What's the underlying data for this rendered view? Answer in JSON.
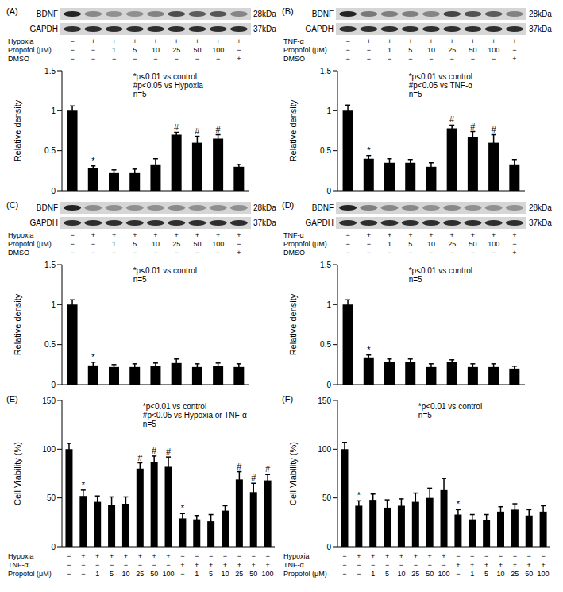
{
  "chart_data": [
    {
      "type": "bar",
      "panel": "(A)",
      "color": "#000000",
      "tick_labels": "y",
      "y_label": "Relative density",
      "blot": [
        {
          "name": "BDNF",
          "mw": "28kDa"
        },
        {
          "name": "GAPDH",
          "mw": "37kDa"
        }
      ],
      "conditions": [
        {
          "name": "Hypoxia",
          "marks": [
            "−",
            "+",
            "+",
            "+",
            "+",
            "+",
            "+",
            "+",
            "+"
          ]
        },
        {
          "name": "Propofol (μM)",
          "marks": [
            "−",
            "−",
            "1",
            "5",
            "10",
            "25",
            "50",
            "100",
            "−"
          ]
        },
        {
          "name": "DMSO",
          "marks": [
            "−",
            "−",
            "−",
            "−",
            "−",
            "−",
            "−",
            "−",
            "+"
          ]
        }
      ],
      "annotations": [
        "*p<0.01 vs control",
        "#p<0.05 vs Hypoxia",
        "n=5"
      ],
      "values": [
        1.0,
        0.28,
        0.22,
        0.22,
        0.32,
        0.7,
        0.6,
        0.65,
        0.3
      ],
      "errors": [
        0.06,
        0.03,
        0.04,
        0.05,
        0.08,
        0.03,
        0.08,
        0.05,
        0.03
      ],
      "bar_marks": [
        null,
        "*",
        null,
        null,
        null,
        "#",
        "#",
        "#",
        null
      ],
      "ylim": [
        0,
        1.5
      ],
      "yticks": [
        0,
        0.5,
        1,
        1.5
      ]
    },
    {
      "type": "bar",
      "panel": "(B)",
      "color": "#000000",
      "tick_labels": "y",
      "y_label": "Relative density",
      "blot": [
        {
          "name": "BDNF",
          "mw": "28kDa"
        },
        {
          "name": "GAPDH",
          "mw": "37kDa"
        }
      ],
      "conditions": [
        {
          "name": "TNF-α",
          "marks": [
            "−",
            "+",
            "+",
            "+",
            "+",
            "+",
            "+",
            "+",
            "+"
          ]
        },
        {
          "name": "Propofol (μM)",
          "marks": [
            "−",
            "−",
            "1",
            "5",
            "10",
            "25",
            "50",
            "100",
            "−"
          ]
        },
        {
          "name": "DMSO",
          "marks": [
            "−",
            "−",
            "−",
            "−",
            "−",
            "−",
            "−",
            "−",
            "+"
          ]
        }
      ],
      "annotations": [
        "*p<0.01 vs control",
        "#p<0.05 vs TNF-α",
        "n=5"
      ],
      "values": [
        1.0,
        0.4,
        0.35,
        0.35,
        0.3,
        0.78,
        0.67,
        0.6,
        0.32
      ],
      "errors": [
        0.07,
        0.04,
        0.05,
        0.04,
        0.05,
        0.04,
        0.07,
        0.1,
        0.07
      ],
      "bar_marks": [
        null,
        "*",
        null,
        null,
        null,
        "#",
        "#",
        "#",
        null
      ],
      "ylim": [
        0,
        1.5
      ],
      "yticks": [
        0,
        0.5,
        1,
        1.5
      ]
    },
    {
      "type": "bar",
      "panel": "(C)",
      "color": "#000000",
      "tick_labels": "y",
      "y_label": "Relative density",
      "blot": [
        {
          "name": "BDNF",
          "mw": "28kDa"
        },
        {
          "name": "GAPDH",
          "mw": "37kDa"
        }
      ],
      "conditions": [
        {
          "name": "Hypoxia",
          "marks": [
            "−",
            "+",
            "+",
            "+",
            "+",
            "+",
            "+",
            "+",
            "+"
          ]
        },
        {
          "name": "Propofol (μM)",
          "marks": [
            "−",
            "−",
            "1",
            "5",
            "10",
            "25",
            "50",
            "100",
            "−"
          ]
        },
        {
          "name": "DMSO",
          "marks": [
            "−",
            "−",
            "−",
            "−",
            "−",
            "−",
            "−",
            "−",
            "+"
          ]
        }
      ],
      "annotations": [
        "*p<0.01 vs control",
        "n=5"
      ],
      "values": [
        1.0,
        0.24,
        0.22,
        0.22,
        0.23,
        0.27,
        0.22,
        0.23,
        0.22
      ],
      "errors": [
        0.06,
        0.04,
        0.03,
        0.04,
        0.04,
        0.05,
        0.04,
        0.04,
        0.04
      ],
      "bar_marks": [
        null,
        "*",
        null,
        null,
        null,
        null,
        null,
        null,
        null
      ],
      "ylim": [
        0,
        1.5
      ],
      "yticks": [
        0,
        0.5,
        1,
        1.5
      ]
    },
    {
      "type": "bar",
      "panel": "(D)",
      "color": "#000000",
      "tick_labels": "y",
      "y_label": "Relative density",
      "blot": [
        {
          "name": "BDNF",
          "mw": "28kDa"
        },
        {
          "name": "GAPDH",
          "mw": "37kDa"
        }
      ],
      "conditions": [
        {
          "name": "TNF-α",
          "marks": [
            "−",
            "+",
            "+",
            "+",
            "+",
            "+",
            "+",
            "+",
            "+"
          ]
        },
        {
          "name": "Propofol (μM)",
          "marks": [
            "−",
            "−",
            "1",
            "5",
            "10",
            "25",
            "50",
            "100",
            "−"
          ]
        },
        {
          "name": "DMSO",
          "marks": [
            "−",
            "−",
            "−",
            "−",
            "−",
            "−",
            "−",
            "−",
            "+"
          ]
        }
      ],
      "annotations": [
        "*p<0.01 vs control",
        "n=5"
      ],
      "values": [
        1.0,
        0.34,
        0.28,
        0.28,
        0.22,
        0.28,
        0.22,
        0.22,
        0.2
      ],
      "errors": [
        0.06,
        0.03,
        0.04,
        0.04,
        0.04,
        0.03,
        0.04,
        0.04,
        0.03
      ],
      "bar_marks": [
        null,
        "*",
        null,
        null,
        null,
        null,
        null,
        null,
        null
      ],
      "ylim": [
        0,
        1.5
      ],
      "yticks": [
        0,
        0.5,
        1,
        1.5
      ]
    },
    {
      "type": "bar",
      "panel": "(E)",
      "color": "#000000",
      "tick_labels": "y",
      "y_label": "Cell Viability (%)",
      "conditions": [
        {
          "name": "Hypoxia",
          "marks": [
            "−",
            "+",
            "+",
            "+",
            "+",
            "+",
            "+",
            "+",
            "−",
            "−",
            "−",
            "−",
            "−",
            "−",
            "−"
          ]
        },
        {
          "name": "TNF-α",
          "marks": [
            "−",
            "−",
            "−",
            "−",
            "−",
            "−",
            "−",
            "−",
            "+",
            "+",
            "+",
            "+",
            "+",
            "+",
            "+"
          ]
        },
        {
          "name": "Propofol (μM)",
          "marks": [
            "−",
            "−",
            "1",
            "5",
            "10",
            "25",
            "50",
            "100",
            "−",
            "1",
            "5",
            "10",
            "25",
            "50",
            "100"
          ]
        }
      ],
      "annotations": [
        "*p<0.01 vs control",
        "#p<0.05 vs Hypoxia or TNF-α",
        "n=5"
      ],
      "values": [
        100,
        52,
        46,
        43,
        44,
        80,
        87,
        82,
        29,
        28,
        26,
        37,
        69,
        56,
        68
      ],
      "errors": [
        6,
        6,
        6,
        8,
        7,
        6,
        6,
        10,
        5,
        4,
        7,
        5,
        8,
        9,
        6
      ],
      "bar_marks": [
        null,
        "*",
        null,
        null,
        null,
        "#",
        "#",
        "#",
        "*",
        null,
        null,
        null,
        "#",
        "#",
        "#"
      ],
      "ylim": [
        0,
        150
      ],
      "yticks": [
        0,
        50,
        100,
        150
      ]
    },
    {
      "type": "bar",
      "panel": "(F)",
      "color": "#000000",
      "tick_labels": "y",
      "y_label": "Cell Viability (%)",
      "conditions": [
        {
          "name": "Hypoxia",
          "marks": [
            "−",
            "+",
            "+",
            "+",
            "+",
            "+",
            "+",
            "+",
            "−",
            "−",
            "−",
            "−",
            "−",
            "−",
            "−"
          ]
        },
        {
          "name": "TNF-α",
          "marks": [
            "−",
            "−",
            "−",
            "−",
            "−",
            "−",
            "−",
            "−",
            "+",
            "+",
            "+",
            "+",
            "+",
            "+",
            "+"
          ]
        },
        {
          "name": "Propofol (μM)",
          "marks": [
            "−",
            "−",
            "1",
            "5",
            "10",
            "25",
            "50",
            "100",
            "−",
            "1",
            "5",
            "10",
            "25",
            "50",
            "100"
          ]
        }
      ],
      "annotations": [
        "*p<0.01 vs control",
        "n=5"
      ],
      "values": [
        100,
        42,
        48,
        40,
        42,
        46,
        50,
        58,
        33,
        28,
        27,
        36,
        38,
        32,
        36
      ],
      "errors": [
        7,
        5,
        6,
        8,
        7,
        9,
        10,
        12,
        5,
        5,
        6,
        5,
        6,
        6,
        6
      ],
      "bar_marks": [
        null,
        "*",
        null,
        null,
        null,
        null,
        null,
        null,
        "*",
        null,
        null,
        null,
        null,
        null,
        null
      ],
      "ylim": [
        0,
        150
      ],
      "yticks": [
        0,
        50,
        100,
        150
      ]
    }
  ]
}
